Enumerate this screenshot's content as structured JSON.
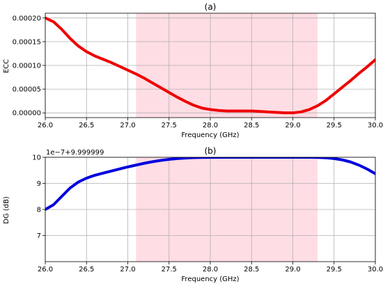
{
  "chart_data": [
    {
      "type": "line",
      "title": "(a)",
      "xlabel": "Frequency (GHz)",
      "ylabel": "ECC",
      "xlim": [
        26.0,
        30.0
      ],
      "ylim": [
        -1e-05,
        0.00021
      ],
      "xticks": [
        "26.0",
        "26.5",
        "27.0",
        "27.5",
        "28.0",
        "28.5",
        "29.0",
        "29.5",
        "30.0"
      ],
      "yticks": [
        "0.00000",
        "0.00005",
        "0.00010",
        "0.00015",
        "0.00020"
      ],
      "grid": true,
      "shaded_band": {
        "x_range": [
          27.1,
          29.3
        ],
        "color": "#ffdde4"
      },
      "series": [
        {
          "color": "#ee0000",
          "x": [
            26.0,
            26.1,
            26.2,
            26.3,
            26.4,
            26.5,
            26.6,
            26.7,
            26.8,
            26.9,
            27.0,
            27.1,
            27.2,
            27.3,
            27.4,
            27.5,
            27.6,
            27.7,
            27.8,
            27.9,
            28.0,
            28.1,
            28.2,
            28.3,
            28.4,
            28.5,
            28.6,
            28.7,
            28.8,
            28.9,
            29.0,
            29.1,
            29.2,
            29.3,
            29.4,
            29.5,
            29.6,
            29.7,
            29.8,
            29.9,
            30.0
          ],
          "y": [
            0.0002,
            0.000192,
            0.000176,
            0.000157,
            0.000141,
            0.000129,
            0.00012,
            0.000113,
            0.000106,
            9.8e-05,
            9e-05,
            8.2e-05,
            7.3e-05,
            6.3e-05,
            5.3e-05,
            4.3e-05,
            3.3e-05,
            2.4e-05,
            1.6e-05,
            1e-05,
            7e-06,
            5e-06,
            4e-06,
            4e-06,
            4e-06,
            4e-06,
            3e-06,
            2e-06,
            1e-06,
            0.0,
            0.0,
            2e-06,
            7e-06,
            1.5e-05,
            2.6e-05,
            4e-05,
            5.4e-05,
            6.8e-05,
            8.3e-05,
            9.7e-05,
            0.000112
          ]
        }
      ]
    },
    {
      "type": "line",
      "title": "(b)",
      "xlabel": "Frequency (GHz)",
      "ylabel": "DG (dB)",
      "offset_text": "1e−7+9.999999",
      "xlim": [
        26.0,
        30.0
      ],
      "ylim": [
        6.0,
        10.0
      ],
      "xticks": [
        "26.0",
        "26.5",
        "27.0",
        "27.5",
        "28.0",
        "28.5",
        "29.0",
        "29.5",
        "30.0"
      ],
      "yticks": [
        "7",
        "8",
        "9",
        "10"
      ],
      "grid": true,
      "shaded_band": {
        "x_range": [
          27.1,
          29.3
        ],
        "color": "#ffdde4"
      },
      "series": [
        {
          "color": "#0000dd",
          "x": [
            26.0,
            26.1,
            26.2,
            26.3,
            26.4,
            26.5,
            26.6,
            26.7,
            26.8,
            26.9,
            27.0,
            27.1,
            27.2,
            27.3,
            27.4,
            27.5,
            27.6,
            27.7,
            27.8,
            27.9,
            28.0,
            28.2,
            28.4,
            28.6,
            28.8,
            29.0,
            29.2,
            29.3,
            29.4,
            29.5,
            29.6,
            29.7,
            29.8,
            29.9,
            30.0
          ],
          "y": [
            8.0,
            8.18,
            8.5,
            8.82,
            9.05,
            9.2,
            9.31,
            9.39,
            9.47,
            9.55,
            9.63,
            9.7,
            9.77,
            9.83,
            9.88,
            9.92,
            9.95,
            9.97,
            9.985,
            9.993,
            9.997,
            9.999,
            10.0,
            10.0,
            10.0,
            10.0,
            10.0,
            9.995,
            9.98,
            9.95,
            9.9,
            9.82,
            9.7,
            9.55,
            9.37
          ]
        }
      ]
    }
  ]
}
